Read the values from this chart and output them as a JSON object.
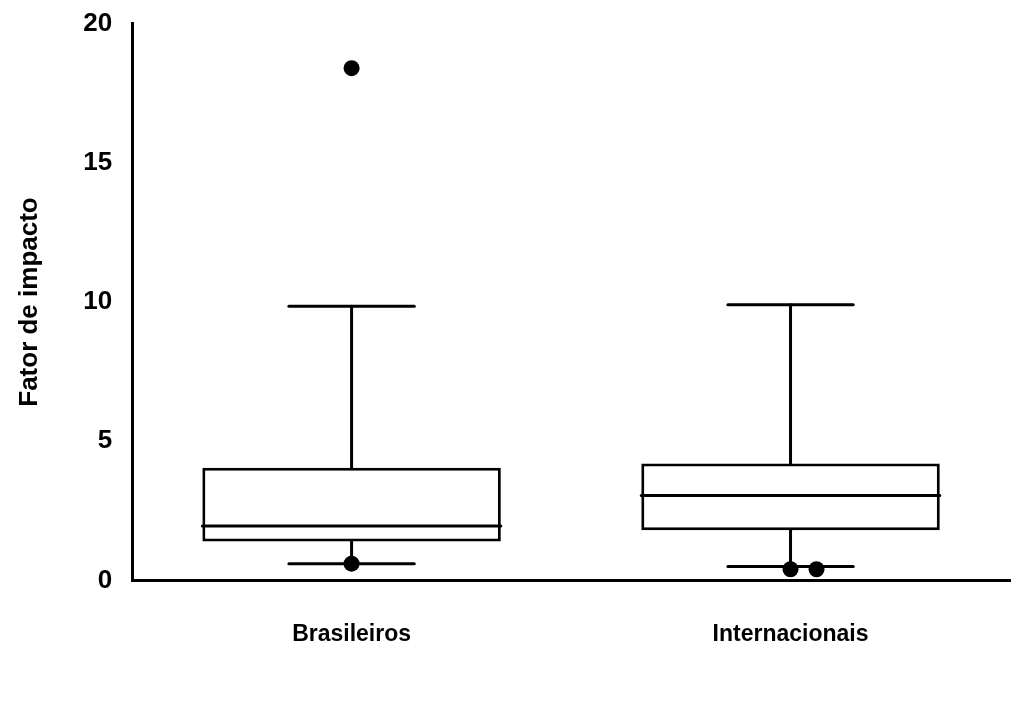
{
  "chart_data": {
    "type": "box",
    "ylabel": "Fator de impacto",
    "categories": [
      "Brasileiros",
      "Internacionais"
    ],
    "boxes": [
      {
        "low": 0.6,
        "q1": 1.4,
        "median": 1.95,
        "q3": 4.05,
        "high": 9.85,
        "outliers": [
          18.4,
          0.6
        ]
      },
      {
        "low": 0.5,
        "q1": 1.8,
        "median": 3.05,
        "q3": 4.2,
        "high": 9.9,
        "outliers": [
          0.4,
          0.4
        ]
      }
    ],
    "color": "#000000",
    "ylim": [
      0,
      20
    ],
    "yticks": [
      0,
      5,
      10,
      15,
      20
    ],
    "grid": false,
    "legend": false
  }
}
